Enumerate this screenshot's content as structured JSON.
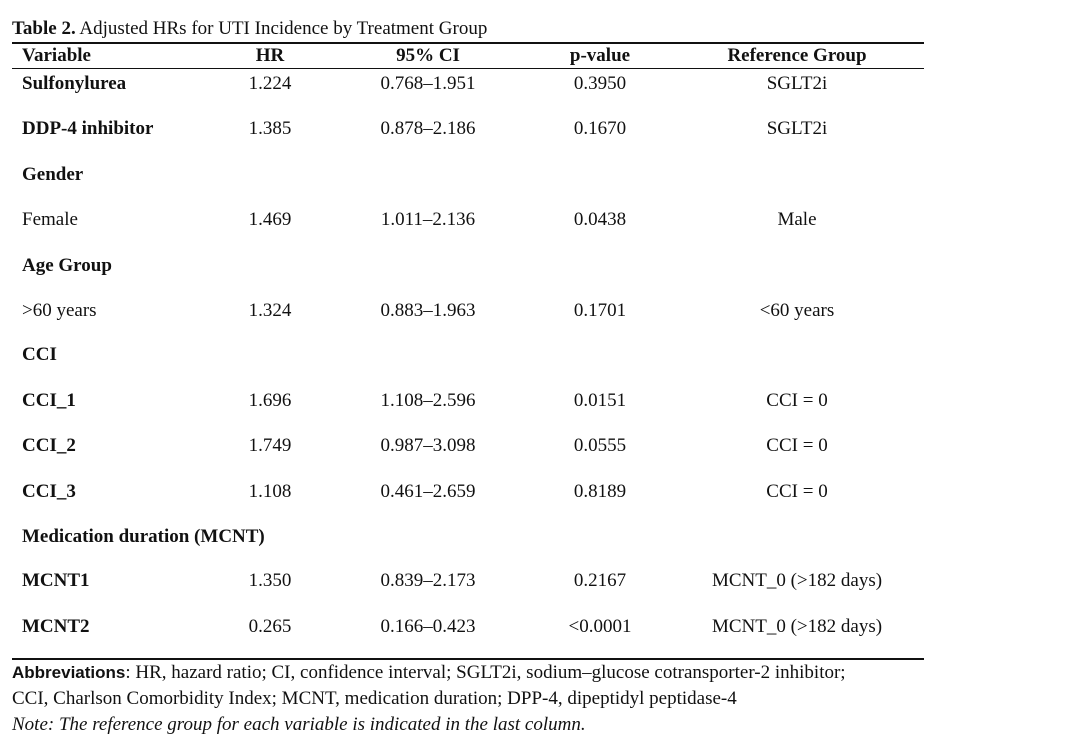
{
  "caption": {
    "label": "Table 2.",
    "text": " Adjusted HRs for UTI Incidence by Treatment Group"
  },
  "table": {
    "headers": {
      "variable": "Variable",
      "hr": "HR",
      "ci": "95% CI",
      "p": "p-value",
      "ref": "Reference Group"
    },
    "rows": [
      {
        "variable": "Sulfonylurea",
        "hr": "1.224",
        "ci": "0.768–1.951",
        "p": "0.3950",
        "ref": "SGLT2i",
        "bold": true
      },
      {
        "variable": "DDP-4 inhibitor",
        "hr": "1.385",
        "ci": "0.878–2.186",
        "p": "0.1670",
        "ref": "SGLT2i",
        "bold": true
      },
      {
        "variable": "Gender",
        "hr": "",
        "ci": "",
        "p": "",
        "ref": "",
        "bold": true
      },
      {
        "variable": "Female",
        "hr": "1.469",
        "ci": "1.011–2.136",
        "p": "0.0438",
        "ref": "Male",
        "bold": false
      },
      {
        "variable": "Age Group",
        "hr": "",
        "ci": "",
        "p": "",
        "ref": "",
        "bold": true
      },
      {
        "variable": ">60 years",
        "hr": "1.324",
        "ci": "0.883–1.963",
        "p": "0.1701",
        "ref": "<60 years",
        "bold": false
      },
      {
        "variable": "CCI",
        "hr": "",
        "ci": "",
        "p": "",
        "ref": "",
        "bold": true
      },
      {
        "variable": "CCI_1",
        "hr": "1.696",
        "ci": "1.108–2.596",
        "p": "0.0151",
        "ref": "CCI = 0",
        "bold": true
      },
      {
        "variable": "CCI_2",
        "hr": "1.749",
        "ci": "0.987–3.098",
        "p": "0.0555",
        "ref": "CCI = 0",
        "bold": true
      },
      {
        "variable": "CCI_3",
        "hr": "1.108",
        "ci": "0.461–2.659",
        "p": "0.8189",
        "ref": "CCI = 0",
        "bold": true
      },
      {
        "variable": "Medication duration (MCNT)",
        "hr": "",
        "ci": "",
        "p": "",
        "ref": "",
        "bold": true
      },
      {
        "variable": "MCNT1",
        "hr": "1.350",
        "ci": "0.839–2.173",
        "p": "0.2167",
        "ref": "MCNT_0 (>182 days)",
        "bold": true
      },
      {
        "variable": "MCNT2",
        "hr": "0.265",
        "ci": "0.166–0.423",
        "p": "<0.0001",
        "ref": "MCNT_0 (>182 days)",
        "bold": true
      }
    ]
  },
  "footnotes": {
    "abbrev_label": "Abbreviations",
    "abbrev_line1": ": HR, hazard ratio; CI, confidence interval; SGLT2i, sodium–glucose cotransporter-2 inhibitor;",
    "abbrev_line2": "CCI, Charlson Comorbidity Index; MCNT, medication duration; DPP-4, dipeptidyl peptidase-4",
    "note": "Note: The reference group for each variable is indicated in the last column."
  }
}
